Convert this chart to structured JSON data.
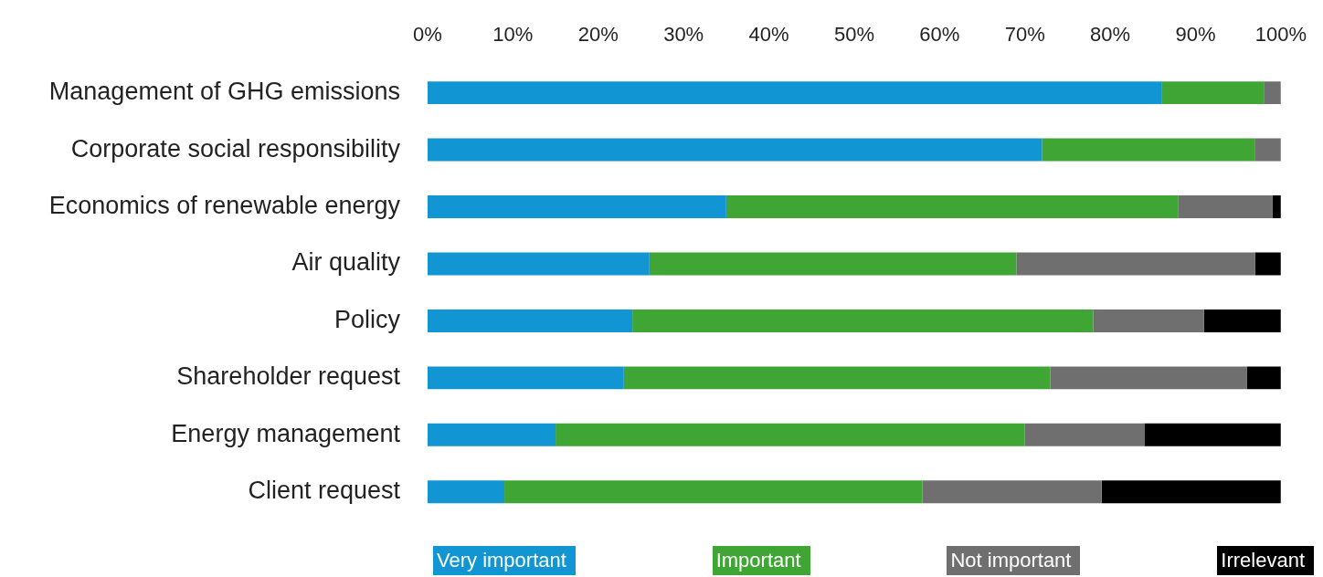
{
  "chart_data": {
    "type": "bar",
    "orientation": "horizontal",
    "stacked": true,
    "legend": "bottom",
    "grid": false,
    "categories": [
      "Management of GHG emissions",
      "Corporate social responsibility",
      "Economics of renewable energy",
      "Air quality",
      "Policy",
      "Shareholder request",
      "Energy management",
      "Client request"
    ],
    "series": [
      {
        "name": "Very important",
        "color": "#1195d3",
        "values": [
          86,
          72,
          35,
          26,
          24,
          23,
          15,
          9
        ]
      },
      {
        "name": "Important",
        "color": "#3fa535",
        "values": [
          12,
          25,
          53,
          43,
          54,
          50,
          55,
          49
        ]
      },
      {
        "name": "Not important",
        "color": "#6f6f6f",
        "values": [
          2,
          3,
          11,
          28,
          13,
          23,
          14,
          21
        ]
      },
      {
        "name": "Irrelevant",
        "color": "#000000",
        "values": [
          0,
          0,
          1,
          3,
          9,
          4,
          16,
          21
        ]
      }
    ],
    "xlim": [
      0,
      100
    ],
    "xticks": [
      {
        "value": 0,
        "label": "0%"
      },
      {
        "value": 10,
        "label": "10%"
      },
      {
        "value": 20,
        "label": "20%"
      },
      {
        "value": 30,
        "label": "30%"
      },
      {
        "value": 40,
        "label": "40%"
      },
      {
        "value": 50,
        "label": "50%"
      },
      {
        "value": 60,
        "label": "60%"
      },
      {
        "value": 70,
        "label": "70%"
      },
      {
        "value": 80,
        "label": "80%"
      },
      {
        "value": 90,
        "label": "90%"
      },
      {
        "value": 100,
        "label": "100%"
      }
    ]
  }
}
